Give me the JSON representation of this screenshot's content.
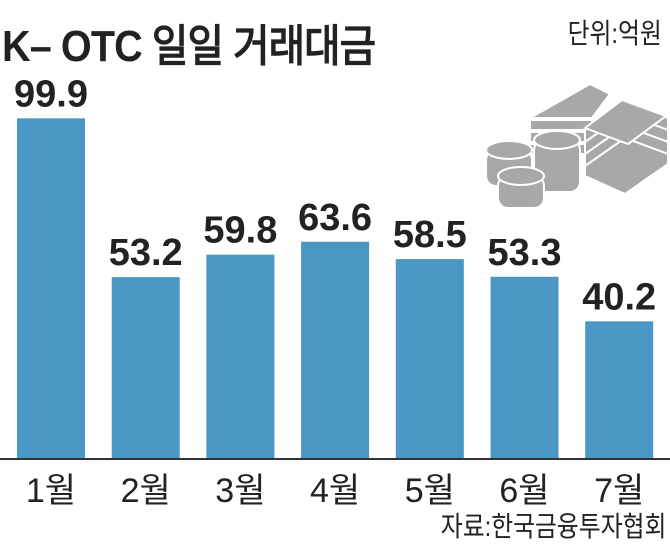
{
  "title": "K– OTC 일일 거래대금",
  "unit": "단위:억원",
  "source": "자료:한국금융투자협회",
  "icon": "money-stack-coins-icon",
  "colors": {
    "bar": "#4a96c4",
    "icon": "#a8a8a8"
  },
  "chart_data": {
    "type": "bar",
    "title": "K– OTC 일일 거래대금",
    "categories": [
      "1월",
      "2월",
      "3월",
      "4월",
      "5월",
      "6월",
      "7월"
    ],
    "values": [
      99.9,
      53.2,
      59.8,
      63.6,
      58.5,
      53.3,
      40.2
    ],
    "value_labels": [
      "99.9",
      "53.2",
      "59.8",
      "63.6",
      "58.5",
      "53.3",
      "40.2"
    ],
    "xlabel": "",
    "ylabel": "단위:억원",
    "ylim": [
      0,
      100
    ],
    "grid": false
  }
}
